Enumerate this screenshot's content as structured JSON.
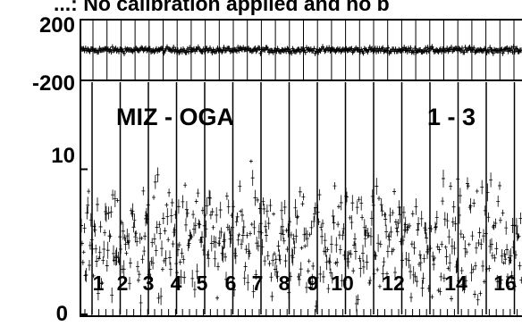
{
  "header_text": "...: No calibration applied and no b",
  "chart_data": [
    {
      "type": "scatter",
      "panel": "top",
      "ylim": [
        -200,
        200
      ],
      "ytick_labels": [
        "200",
        "-200"
      ],
      "grid": true,
      "series": [
        {
          "values_center": 0,
          "spread": 10
        }
      ]
    },
    {
      "type": "scatter",
      "panel": "bottom",
      "ylim": [
        0,
        16
      ],
      "ytick_labels": [
        "10",
        "0"
      ],
      "ytick_values": [
        10,
        0
      ],
      "grid": true,
      "annotations": [
        "MIZ - OGA",
        "1 - 3"
      ],
      "segment_labels": [
        "1",
        "2",
        "3",
        "4",
        "5",
        "6",
        "7",
        "8",
        "9",
        "10",
        "12",
        "14",
        "16"
      ],
      "series": [
        {
          "values_center": 5,
          "spread": 3
        }
      ]
    }
  ]
}
